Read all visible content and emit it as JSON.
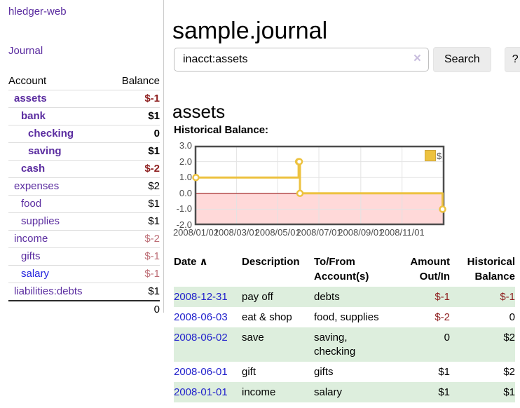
{
  "app": {
    "name": "hledger-web"
  },
  "sidebar": {
    "journal_link": "Journal",
    "accounts_header": {
      "account": "Account",
      "balance": "Balance"
    },
    "accounts": [
      {
        "name": "assets",
        "balance": "$-1"
      },
      {
        "name": "bank",
        "balance": "$1"
      },
      {
        "name": "checking",
        "balance": "0"
      },
      {
        "name": "saving",
        "balance": "$1"
      },
      {
        "name": "cash",
        "balance": "$-2"
      },
      {
        "name": "expenses",
        "balance": "$2"
      },
      {
        "name": "food",
        "balance": "$1"
      },
      {
        "name": "supplies",
        "balance": "$1"
      },
      {
        "name": "income",
        "balance": "$-2"
      },
      {
        "name": "gifts",
        "balance": "$-1"
      },
      {
        "name": "salary",
        "balance": "$-1"
      },
      {
        "name": "liabilities:debts",
        "balance": "$1"
      }
    ],
    "total": "0"
  },
  "header": {
    "title": "sample.journal",
    "search_value": "inacct:assets",
    "clear_icon": "×",
    "search_button": "Search",
    "help_button": "?"
  },
  "main": {
    "account_heading": "assets",
    "chart_label": "Historical Balance:"
  },
  "chart_data": {
    "type": "line",
    "style": "step",
    "title": "Historical Balance:",
    "x_range": [
      "2008-01-01",
      "2009-01-01"
    ],
    "ylim": [
      -2,
      3
    ],
    "y_ticks": [
      "3.0",
      "2.0",
      "1.0",
      "0.0",
      "-1.0",
      "-2.0"
    ],
    "x_ticks": [
      {
        "date": "2008-01-01",
        "label": "2008/01/01"
      },
      {
        "date": "2008-03-01",
        "label": "2008/03/01"
      },
      {
        "date": "2008-05-01",
        "label": "2008/05/01"
      },
      {
        "date": "2008-07-01",
        "label": "2008/07/01"
      },
      {
        "date": "2008-09-01",
        "label": "2008/09/01"
      },
      {
        "date": "2008-11-01",
        "label": "2008/11/01"
      }
    ],
    "grid": true,
    "legend_position": "top-right",
    "zero_line_color": "#8b0000",
    "negative_region_color": "#ffd9d9",
    "series": [
      {
        "name": "$",
        "color": "#edc240",
        "points": [
          [
            "2008-01-01",
            1
          ],
          [
            "2008-06-01",
            2
          ],
          [
            "2008-06-02",
            2
          ],
          [
            "2008-06-03",
            0
          ],
          [
            "2008-12-31",
            -1
          ]
        ]
      }
    ]
  },
  "register": {
    "headers": {
      "date": "Date",
      "sort_asc_icon": "∧",
      "description": "Description",
      "tofrom": "To/From Account(s)",
      "amount": "Amount Out/In",
      "balance": "Historical Balance"
    },
    "rows": [
      {
        "date": "2008-12-31",
        "description": "pay off",
        "tofrom": "debts",
        "amount": "$-1",
        "balance": "$-1"
      },
      {
        "date": "2008-06-03",
        "description": "eat & shop",
        "tofrom": "food, supplies",
        "amount": "$-2",
        "balance": "0"
      },
      {
        "date": "2008-06-02",
        "description": "save",
        "tofrom": "saving, checking",
        "amount": "0",
        "balance": "$2"
      },
      {
        "date": "2008-06-01",
        "description": "gift",
        "tofrom": "gifts",
        "amount": "$1",
        "balance": "$2"
      },
      {
        "date": "2008-01-01",
        "description": "income",
        "tofrom": "salary",
        "amount": "$1",
        "balance": "$1"
      }
    ]
  }
}
